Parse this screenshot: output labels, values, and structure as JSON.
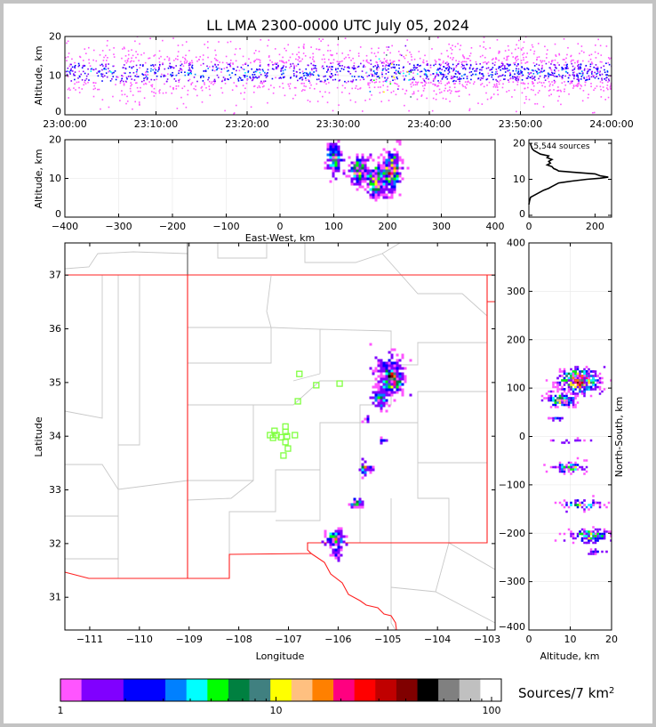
{
  "title": "LL LMA 2300-0000 UTC July 05, 2024",
  "colorbar": {
    "label": "Sources/7 km",
    "label_sup": "2",
    "ticks": [
      "1",
      "10",
      "100"
    ],
    "colors": [
      "#ff55ff",
      "#8000ff",
      "#8000ff",
      "#0000ff",
      "#0000ff",
      "#0080ff",
      "#00ffff",
      "#00ff00",
      "#008040",
      "#408080",
      "#ffff00",
      "#ffc080",
      "#ff8000",
      "#ff0080",
      "#ff0000",
      "#c00000",
      "#800000",
      "#000000",
      "#808080",
      "#c0c0c0",
      "#ffffff"
    ]
  },
  "station_color": "#80ff40",
  "chart_data": [
    {
      "id": "time_height",
      "type": "scatter",
      "ylabel": "Altitude, km",
      "xlim_minutes": [
        0,
        60
      ],
      "ylim": [
        0,
        20
      ],
      "xticks": [
        "23:00:00",
        "23:10:00",
        "23:20:00",
        "23:30:00",
        "23:40:00",
        "23:50:00",
        "24:00:00"
      ],
      "yticks": [
        "0",
        "10",
        "20"
      ],
      "altitude_mode_km": 11,
      "altitude_spread_km": 2.6
    },
    {
      "id": "east_west_altitude",
      "type": "scatter",
      "xlabel": "East-West, km",
      "ylabel": "Altitude, km",
      "xlim": [
        -400,
        400
      ],
      "ylim": [
        0,
        20
      ],
      "xticks": [
        "−400",
        "−300",
        "−200",
        "−100",
        "0",
        "100",
        "200",
        "300",
        "400"
      ],
      "yticks": [
        "0",
        "10",
        "20"
      ],
      "clusters": [
        {
          "x": 100,
          "alt": 15,
          "sx": 8,
          "sa": 2.2,
          "n": 120,
          "peak": 12
        },
        {
          "x": 145,
          "alt": 12,
          "sx": 9,
          "sa": 2,
          "n": 160,
          "peak": 14
        },
        {
          "x": 180,
          "alt": 9.5,
          "sx": 10,
          "sa": 2.2,
          "n": 260,
          "peak": 17
        },
        {
          "x": 208,
          "alt": 12,
          "sx": 8,
          "sa": 2.5,
          "n": 260,
          "peak": 18
        }
      ]
    },
    {
      "id": "altitude_histogram",
      "type": "line",
      "annotation": "5,544 sources",
      "xlim": [
        0,
        250
      ],
      "ylim": [
        -0.5,
        21
      ],
      "xticks": [
        "0",
        "200"
      ],
      "yticks": [
        "0",
        "10",
        "20"
      ],
      "altitude_km": [
        3,
        4,
        5,
        5.5,
        6,
        7,
        7.5,
        8,
        8.5,
        9,
        9.5,
        10,
        10.3,
        10.6,
        11,
        11.5,
        12,
        12.3,
        12.6,
        13,
        13.5,
        14,
        14.5,
        15,
        15.5,
        16,
        16.5,
        17,
        17.5,
        18,
        18.5,
        19,
        19.5,
        20
      ],
      "count": [
        0,
        2,
        5,
        15,
        25,
        45,
        60,
        70,
        80,
        90,
        130,
        175,
        215,
        240,
        215,
        200,
        130,
        90,
        85,
        75,
        70,
        55,
        65,
        60,
        70,
        55,
        60,
        35,
        25,
        15,
        10,
        8,
        6,
        5
      ]
    },
    {
      "id": "plan_view",
      "type": "scatter",
      "xlabel": "Longitude",
      "ylabel": "Latitude",
      "xlim": [
        -111.5,
        -102.84
      ],
      "ylim": [
        30.39,
        37.6
      ],
      "xticks": [
        "−111",
        "−110",
        "−109",
        "−108",
        "−107",
        "−106",
        "−105",
        "−104",
        "−103"
      ],
      "yticks": [
        "31",
        "32",
        "33",
        "34",
        "35",
        "36",
        "37"
      ],
      "clusters": [
        {
          "lon": -104.93,
          "lat": 35.06,
          "sx": 0.12,
          "sy": 0.13,
          "n": 420,
          "peak": 20
        },
        {
          "lon": -105.0,
          "lat": 35.35,
          "sx": 0.15,
          "sy": 0.12,
          "n": 60,
          "peak": 6
        },
        {
          "lon": -105.15,
          "lat": 34.68,
          "sx": 0.07,
          "sy": 0.08,
          "n": 140,
          "peak": 15
        },
        {
          "lon": -105.42,
          "lat": 34.3,
          "sx": 0.03,
          "sy": 0.03,
          "n": 10,
          "peak": 8
        },
        {
          "lon": -105.1,
          "lat": 33.92,
          "sx": 0.05,
          "sy": 0.02,
          "n": 10,
          "peak": 6
        },
        {
          "lon": -105.45,
          "lat": 33.4,
          "sx": 0.07,
          "sy": 0.06,
          "n": 40,
          "peak": 14
        },
        {
          "lon": -105.62,
          "lat": 32.75,
          "sx": 0.06,
          "sy": 0.04,
          "n": 40,
          "peak": 14
        },
        {
          "lon": -106.05,
          "lat": 32.1,
          "sx": 0.1,
          "sy": 0.08,
          "n": 110,
          "peak": 12
        },
        {
          "lon": -106.0,
          "lat": 31.85,
          "sx": 0.05,
          "sy": 0.08,
          "n": 25,
          "peak": 7
        }
      ],
      "stations": [
        [
          -106.78,
          35.16
        ],
        [
          -106.44,
          34.95
        ],
        [
          -105.97,
          34.98
        ],
        [
          -106.81,
          34.65
        ],
        [
          -107.06,
          34.18
        ],
        [
          -107.28,
          34.1
        ],
        [
          -107.37,
          34.02
        ],
        [
          -107.24,
          34.02
        ],
        [
          -107.31,
          33.97
        ],
        [
          -107.15,
          33.98
        ],
        [
          -107.03,
          34.0
        ],
        [
          -106.87,
          34.02
        ],
        [
          -107.06,
          34.08
        ],
        [
          -107.06,
          33.89
        ],
        [
          -107.01,
          33.77
        ],
        [
          -107.1,
          33.64
        ]
      ]
    },
    {
      "id": "altitude_north_south",
      "type": "scatter",
      "xlabel": "Altitude, km",
      "ylabel": "North-South, km",
      "xlim": [
        0,
        20
      ],
      "ylim": [
        -400,
        400
      ],
      "xticks": [
        "0",
        "10",
        "20"
      ],
      "yticks": [
        "−400",
        "−300",
        "−200",
        "−100",
        "0",
        "100",
        "200",
        "300",
        "400"
      ],
      "clusters": [
        {
          "alt": 12,
          "y": 115,
          "sa": 2.6,
          "sy": 14,
          "n": 380,
          "peak": 20
        },
        {
          "alt": 8,
          "y": 75,
          "sa": 1.8,
          "sy": 7,
          "n": 140,
          "peak": 15
        },
        {
          "alt": 7,
          "y": 37,
          "sa": 1.3,
          "sy": 2,
          "n": 15,
          "peak": 6
        },
        {
          "alt": 10,
          "y": -10,
          "sa": 2,
          "sy": 2,
          "n": 15,
          "peak": 5
        },
        {
          "alt": 10,
          "y": -65,
          "sa": 2,
          "sy": 5,
          "n": 70,
          "peak": 13
        },
        {
          "alt": 13,
          "y": -140,
          "sa": 2.5,
          "sy": 5,
          "n": 60,
          "peak": 12
        },
        {
          "alt": 15,
          "y": -205,
          "sa": 2.5,
          "sy": 7,
          "n": 120,
          "peak": 13
        },
        {
          "alt": 17,
          "y": -240,
          "sa": 1.5,
          "sy": 3,
          "n": 20,
          "peak": 7
        }
      ]
    }
  ]
}
